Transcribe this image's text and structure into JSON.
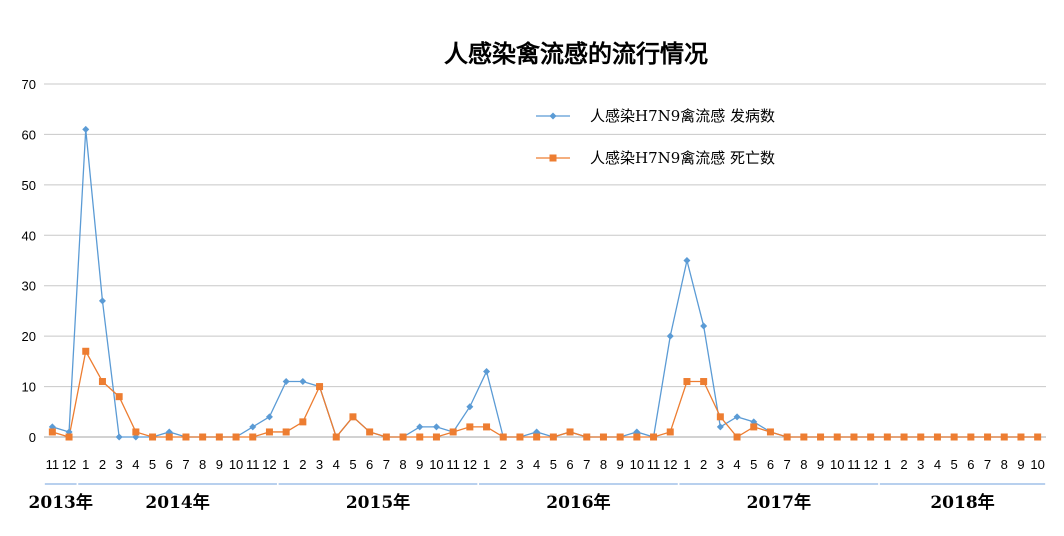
{
  "chart_data": {
    "type": "line",
    "title": "人感染禽流感的流行情况",
    "xlabel": "",
    "ylabel": "",
    "ylim": [
      0,
      70
    ],
    "yticks": [
      0,
      10,
      20,
      30,
      40,
      50,
      60,
      70
    ],
    "grid": true,
    "legend_position": "top-center",
    "categories": [
      "11",
      "12",
      "1",
      "2",
      "3",
      "4",
      "5",
      "6",
      "7",
      "8",
      "9",
      "10",
      "11",
      "12",
      "1",
      "2",
      "3",
      "4",
      "5",
      "6",
      "7",
      "8",
      "9",
      "10",
      "11",
      "12",
      "1",
      "2",
      "3",
      "4",
      "5",
      "6",
      "7",
      "8",
      "9",
      "10",
      "11",
      "12",
      "1",
      "2",
      "3",
      "4",
      "5",
      "6",
      "7",
      "8",
      "9",
      "10",
      "11",
      "12",
      "1",
      "2",
      "3",
      "4",
      "5",
      "6",
      "7",
      "8",
      "9",
      "10"
    ],
    "year_labels": [
      {
        "label": "2013年",
        "from": 0,
        "to": 1
      },
      {
        "label": "2014年",
        "from": 2,
        "to": 13
      },
      {
        "label": "2015年",
        "from": 14,
        "to": 25
      },
      {
        "label": "2016年",
        "from": 26,
        "to": 37
      },
      {
        "label": "2017年",
        "from": 38,
        "to": 49
      },
      {
        "label": "2018年",
        "from": 50,
        "to": 59
      }
    ],
    "series": [
      {
        "name": "人感染H7N9禽流感 发病数",
        "color": "#5B9BD5",
        "marker": "diamond",
        "values": [
          2,
          1,
          61,
          27,
          0,
          0,
          0,
          1,
          0,
          0,
          0,
          0,
          2,
          4,
          11,
          11,
          10,
          0,
          4,
          1,
          0,
          0,
          2,
          2,
          1,
          6,
          13,
          0,
          0,
          1,
          0,
          1,
          0,
          0,
          0,
          1,
          0,
          20,
          35,
          22,
          2,
          4,
          3,
          1,
          0,
          0,
          0,
          0,
          0,
          0,
          0,
          0,
          0,
          0,
          0,
          0,
          0,
          0,
          0,
          0
        ]
      },
      {
        "name": "人感染H7N9禽流感 死亡数",
        "color": "#ED7D31",
        "marker": "square",
        "values": [
          1,
          0,
          17,
          11,
          8,
          1,
          0,
          0,
          0,
          0,
          0,
          0,
          0,
          1,
          1,
          3,
          10,
          0,
          4,
          1,
          0,
          0,
          0,
          0,
          1,
          2,
          2,
          0,
          0,
          0,
          0,
          1,
          0,
          0,
          0,
          0,
          0,
          1,
          11,
          11,
          4,
          0,
          2,
          1,
          0,
          0,
          0,
          0,
          0,
          0,
          0,
          0,
          0,
          0,
          0,
          0,
          0,
          0,
          0,
          0
        ]
      }
    ]
  }
}
